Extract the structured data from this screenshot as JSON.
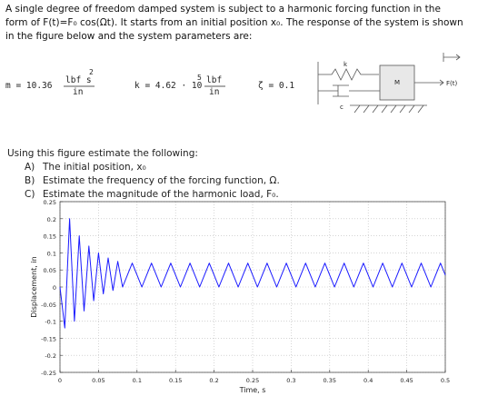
{
  "problem": {
    "lines": [
      "A single degree of freedom damped system is subject to a harmonic forcing function in the",
      "form of F(t)=F₀ cos(Ωt). It starts from an initial position x₀.  The response of the system is shown",
      "in the figure below and the system parameters are:"
    ]
  },
  "parameters": {
    "m": {
      "lead": "m = 10.36",
      "num": "lbf s",
      "exp": "2",
      "den": "in"
    },
    "k": {
      "lead": "k = 4.62 · 10",
      "exp": "5",
      "num": "lbf",
      "den": "in"
    },
    "zeta": "ζ = 0.1"
  },
  "diagram": {
    "mass": "M",
    "force": "F(t)",
    "spring": "k",
    "damper": "c"
  },
  "questions": {
    "intro": "Using this figure estimate the following:",
    "items": [
      {
        "letter": "A)",
        "text": "The initial position, x₀"
      },
      {
        "letter": "B)",
        "text": "Estimate the frequency of the forcing function, Ω."
      },
      {
        "letter": "C)",
        "text": "Estimate the magnitude of the harmonic load, F₀."
      }
    ]
  },
  "chart_data": {
    "type": "line",
    "xlabel": "Time, s",
    "ylabel": "Displacement, in",
    "grid": true,
    "xlim": [
      0,
      0.5
    ],
    "ylim": [
      -0.25,
      0.25
    ],
    "xticks": [
      0,
      0.05,
      0.1,
      0.15,
      0.2,
      0.25,
      0.3,
      0.35,
      0.4,
      0.45,
      0.5
    ],
    "yticks": [
      -0.25,
      -0.2,
      -0.15,
      -0.1,
      -0.05,
      0,
      0.05,
      0.1,
      0.15,
      0.2,
      0.25
    ],
    "x": [
      0,
      0.00625,
      0.0125,
      0.01875,
      0.025,
      0.03125,
      0.0375,
      0.04375,
      0.05,
      0.05625,
      0.0625,
      0.06875,
      0.075,
      0.08125,
      0.0875,
      0.09375,
      0.1,
      0.10625,
      0.1125,
      0.11875,
      0.125,
      0.13125,
      0.1375,
      0.14375,
      0.15,
      0.15625,
      0.1625,
      0.16875,
      0.175,
      0.18125,
      0.1875,
      0.19375,
      0.2,
      0.20625,
      0.2125,
      0.21875,
      0.225,
      0.23125,
      0.2375,
      0.24375,
      0.25,
      0.25625,
      0.2625,
      0.26875,
      0.275,
      0.28125,
      0.2875,
      0.29375,
      0.3,
      0.30625,
      0.3125,
      0.31875,
      0.325,
      0.33125,
      0.3375,
      0.34375,
      0.35,
      0.35625,
      0.3625,
      0.36875,
      0.375,
      0.38125,
      0.3875,
      0.39375,
      0.4,
      0.40625,
      0.4125,
      0.41875,
      0.425,
      0.43125,
      0.4375,
      0.44375,
      0.45,
      0.45625,
      0.4625,
      0.46875,
      0.475,
      0.48125,
      0.4875,
      0.49375,
      0.5
    ],
    "series": [
      {
        "color": "#1a1aff",
        "values": [
          0,
          -0.12,
          0.2,
          -0.1,
          0.15,
          -0.07,
          0.12,
          -0.04,
          0.1,
          -0.02,
          0.085,
          -0.01,
          0.075,
          0,
          0.035,
          0.07,
          0.035,
          0,
          0.035,
          0.07,
          0.035,
          0,
          0.035,
          0.07,
          0.035,
          0,
          0.035,
          0.07,
          0.035,
          0,
          0.035,
          0.07,
          0.035,
          0,
          0.035,
          0.07,
          0.035,
          0,
          0.035,
          0.07,
          0.035,
          0,
          0.035,
          0.07,
          0.035,
          0,
          0.035,
          0.07,
          0.035,
          0,
          0.035,
          0.07,
          0.035,
          0,
          0.035,
          0.07,
          0.035,
          0,
          0.035,
          0.07,
          0.035,
          0,
          0.035,
          0.07,
          0.035,
          0,
          0.035,
          0.07,
          0.035,
          0,
          0.035,
          0.07,
          0.035,
          0,
          0.035,
          0.07,
          0.035,
          0,
          0.035,
          0.07,
          0.035
        ]
      }
    ]
  }
}
